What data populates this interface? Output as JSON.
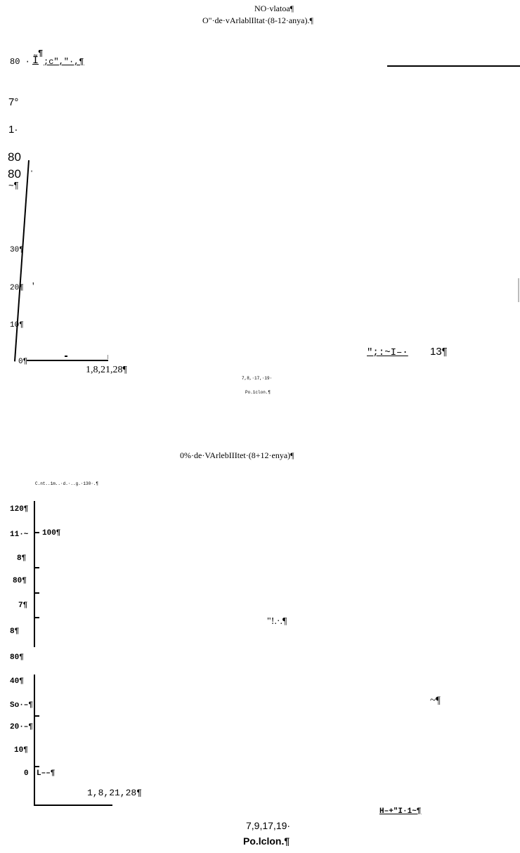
{
  "section1": {
    "title": "NO·vlatoa¶",
    "subtitle": "O\"·de·vArlablIltat·(8-12·anya).¶",
    "header_label": "80 ·",
    "header_mark": "Ĩ",
    "header_pilcrow": "¶",
    "header_garble": ";c\",\"·,¶",
    "left_labels": [
      "7°",
      "1·"
    ],
    "ylabel_80a": "80",
    "ylabel_80b": "80",
    "ylabel_80b_tick": "'",
    "ylabel_tilde": "~¶",
    "ytick_30": "30¶",
    "ytick_20": "20¶",
    "ytick_20_tick": "'",
    "ytick_10": "10¶",
    "ytick_0": "0¶",
    "xaxis_values": "1,8,21,28¶",
    "right_garble": "\";:~I–·",
    "right_value": "13¶",
    "x_small_values": "7,8,·17,·19·",
    "x_small_label": "Po.1clon.¶"
  },
  "section2": {
    "title": "0%·de·VArlebIIItet·(8+12·enya)¶",
    "caption_small": "C.nt..1m..·d.·..g.·130·.¶",
    "labels": [
      "120¶",
      "11·~",
      "100¶",
      "8¶",
      "80¶",
      "7¶",
      "8¶",
      "80¶",
      "40¶",
      "So·–¶",
      "20·–¶",
      "10¶",
      "0",
      "L––¶"
    ],
    "mid_garble": "\"!.·.¶",
    "right_garble": "~¶",
    "xaxis_values": "1,8,21,28¶",
    "right_label": "H–+\"I·1~¶",
    "x_values": "7,9,17,19·",
    "x_label": "Po.lclon.¶"
  }
}
